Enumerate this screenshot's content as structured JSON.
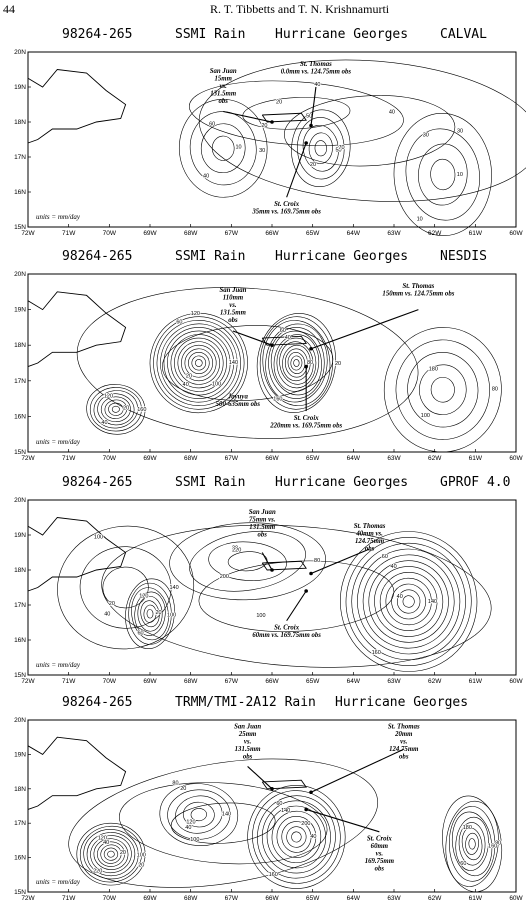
{
  "page": {
    "number": "44",
    "running_head": "R. T. Tibbetts and T. N. Krishnamurti"
  },
  "axes": {
    "x_ticks": [
      "72W",
      "71W",
      "70W",
      "69W",
      "68W",
      "67W",
      "66W",
      "65W",
      "64W",
      "63W",
      "62W",
      "61W",
      "60W"
    ],
    "y_ticks": [
      "20N",
      "19N",
      "18N",
      "17N",
      "16N",
      "15N"
    ]
  },
  "panels": [
    {
      "title_left": "98264-265",
      "title_mid": "SSMI Rain",
      "title_right": "Hurricane Georges",
      "title_algo": "CALVAL",
      "units": "units = mm/day",
      "annotations": {
        "san_juan": [
          "San Juan",
          "15mm",
          "vs.",
          "131.5mm",
          "obs"
        ],
        "st_thomas": [
          "St. Thomas",
          "0.0mm vs. 124.75mm obs"
        ],
        "st_croix": [
          "St. Croix",
          "35mm vs. 169.75mm obs"
        ]
      },
      "contour_labels": [
        "10",
        "20",
        "30",
        "40",
        "50",
        "60",
        "70",
        "10",
        "20",
        "30",
        "40",
        "50",
        "10",
        "20",
        "40",
        "30"
      ]
    },
    {
      "title_left": "98264-265",
      "title_mid": "SSMI Rain",
      "title_right": "Hurricane Georges",
      "title_algo": "NESDIS",
      "units": "units = mm/day",
      "annotations": {
        "san_juan": [
          "San Juan",
          "110mm",
          "vs.",
          "131.5mm",
          "obs"
        ],
        "st_thomas": [
          "St. Thomas",
          "150mm vs. 124.75mm obs"
        ],
        "st_croix": [
          "St. Croix",
          "220mm vs. 169.75mm obs"
        ],
        "jayuya": [
          "Jayuya",
          "500-635mm obs"
        ]
      },
      "contour_labels": [
        "20",
        "40",
        "60",
        "80",
        "100",
        "120",
        "140",
        "160",
        "180",
        "20",
        "40",
        "60",
        "80",
        "100",
        "120",
        "160",
        "20",
        "40"
      ]
    },
    {
      "title_left": "98264-265",
      "title_mid": "SSMI Rain",
      "title_right": "Hurricane Georges",
      "title_algo": "GPROF 4.0",
      "units": "units = mm/day",
      "annotations": {
        "san_juan": [
          "San Juan",
          "75mm vs.",
          "131.5mm",
          "obs"
        ],
        "st_thomas": [
          "St. Thomas",
          "40mm vs.",
          "124.75mm",
          "obs"
        ],
        "st_croix": [
          "St. Croix",
          "60mm vs. 169.75mm obs"
        ]
      },
      "contour_labels": [
        "20",
        "40",
        "60",
        "80",
        "100",
        "120",
        "140",
        "160",
        "20",
        "40",
        "60",
        "100",
        "140",
        "200",
        "220",
        "100",
        "20",
        "40"
      ]
    },
    {
      "title_left": "98264-265",
      "title_mid": "TRMM/TMI-2A12 Rain",
      "title_right": "Hurricane Georges",
      "title_algo": "",
      "units": "units = mm/day",
      "annotations": {
        "san_juan": [
          "San Juan",
          "25mm",
          "vs.",
          "131.5mm",
          "obs"
        ],
        "st_thomas": [
          "St. Thomas",
          "20mm",
          "vs.",
          "124.75mm",
          "obs"
        ],
        "st_croix": [
          "St. Croix",
          "60mm",
          "vs.",
          "169.75mm",
          "obs"
        ]
      },
      "contour_labels": [
        "20",
        "40",
        "60",
        "80",
        "100",
        "120",
        "140",
        "160",
        "180",
        "200",
        "220",
        "20",
        "40",
        "60",
        "80",
        "100",
        "120",
        "140",
        "160",
        "20",
        "40"
      ]
    }
  ]
}
